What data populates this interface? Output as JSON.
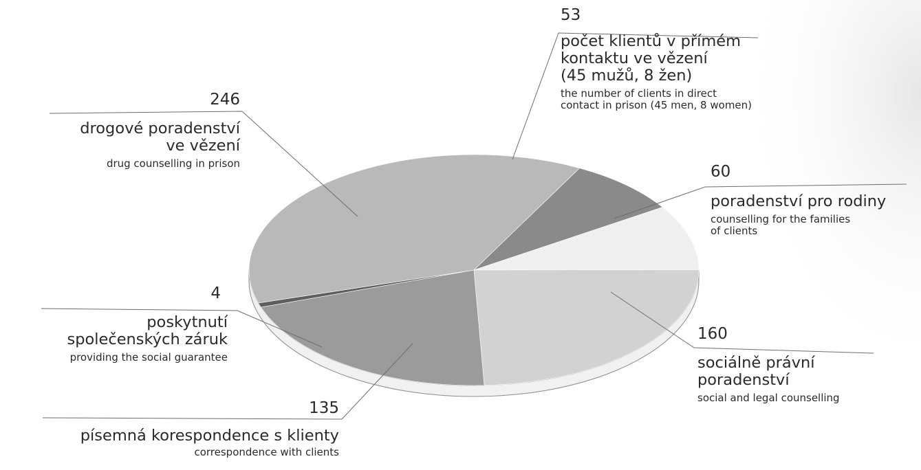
{
  "chart_data": {
    "type": "pie",
    "style": "3d",
    "slices": [
      {
        "value": 53,
        "label_cs": "počet klientů v přímém kontaktu ve vězení (45 mužů, 8 žen)",
        "label_en": "the number of clients in direct contact in prison (45 men, 8 women)",
        "color": "#8a8a8a"
      },
      {
        "value": 60,
        "label_cs": "poradenství pro rodiny",
        "label_en": "counselling for the families of clients",
        "color": "#efefef"
      },
      {
        "value": 160,
        "label_cs": "sociálně právní poradenství",
        "label_en": "social and legal counselling",
        "color": "#d2d2d2"
      },
      {
        "value": 135,
        "label_cs": "písemná korespondence s klienty",
        "label_en": "correspondence with clients",
        "color": "#9b9b9b"
      },
      {
        "value": 4,
        "label_cs": "poskytnutí společenských záruk",
        "label_en": "providing the social guarantee",
        "color": "#5e5e5e"
      },
      {
        "value": 246,
        "label_cs": "drogové poradenství ve vězení",
        "label_en": "drug counselling in prison",
        "color": "#b9b9b9"
      }
    ]
  },
  "labels": {
    "s53": {
      "num": "53",
      "cz_lines": [
        "počet klientů v přímém",
        "kontaktu ve vězení",
        "(45 mužů, 8 žen)"
      ],
      "en_lines": [
        "the number of clients in direct",
        "contact in prison (45 men, 8 women)"
      ]
    },
    "s60": {
      "num": "60",
      "cz_lines": [
        "poradenství pro rodiny"
      ],
      "en_lines": [
        "counselling for the families",
        "of clients"
      ]
    },
    "s160": {
      "num": "160",
      "cz_lines": [
        "sociálně právní",
        "poradenství"
      ],
      "en_lines": [
        "social and legal counselling"
      ]
    },
    "s135": {
      "num": "135",
      "cz_lines": [
        "písemná korespondence s klienty"
      ],
      "en_lines": [
        "correspondence with clients"
      ]
    },
    "s4": {
      "num": "4",
      "cz_lines": [
        "poskytnutí",
        "společenských záruk"
      ],
      "en_lines": [
        "providing the social guarantee"
      ]
    },
    "s246": {
      "num": "246",
      "cz_lines": [
        "drogové poradenství",
        "ve vězení"
      ],
      "en_lines": [
        "drug counselling in prison"
      ]
    }
  }
}
